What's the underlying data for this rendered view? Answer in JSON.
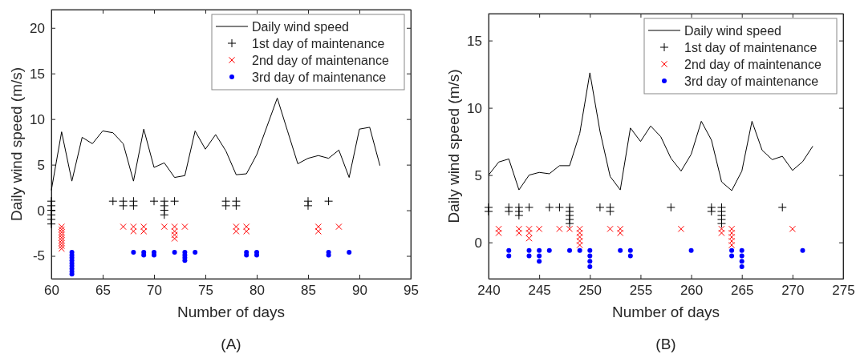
{
  "chart_data": [
    {
      "type": "line",
      "xlabel": "Number of days",
      "ylabel": "Daily wind speed (m/s)",
      "annotations": [
        "(A)"
      ],
      "xlim": [
        60,
        95
      ],
      "xticks": [
        60,
        65,
        70,
        75,
        80,
        85,
        90,
        95
      ],
      "ylim": [
        -7.5,
        22
      ],
      "yticks": [
        -5,
        0,
        5,
        10,
        15,
        20
      ],
      "legend": "top right",
      "grid": false,
      "series": [
        {
          "name": "Daily wind speed",
          "color": "#000000",
          "marker": "none",
          "x": [
            60,
            61,
            62,
            63,
            64,
            65,
            66,
            67,
            68,
            69,
            70,
            71,
            72,
            73,
            74,
            75,
            76,
            77,
            78,
            79,
            80,
            81,
            82,
            83,
            84,
            85,
            86,
            87,
            88,
            89,
            90,
            91,
            92
          ],
          "values": [
            2.2,
            8.6,
            3.2,
            8.0,
            7.3,
            8.7,
            8.5,
            7.3,
            3.2,
            8.9,
            4.7,
            5.2,
            3.6,
            3.8,
            8.7,
            6.7,
            8.3,
            6.5,
            3.9,
            4.0,
            6.1,
            9.2,
            12.3,
            8.7,
            5.1,
            5.7,
            6.0,
            5.7,
            6.6,
            3.6,
            8.9,
            9.1,
            4.9
          ]
        },
        {
          "name": "1st day of maintenance",
          "type": "scatter",
          "color": "#000000",
          "marker": "cross",
          "x": [
            60,
            60,
            60,
            60,
            60,
            60,
            66,
            67,
            67,
            68,
            68,
            70,
            71,
            71,
            71,
            71,
            72,
            77,
            77,
            78,
            78,
            85,
            85,
            87
          ],
          "values": [
            1,
            0.5,
            0,
            -0.5,
            -1,
            -1.5,
            1,
            1,
            0.5,
            1,
            0.5,
            1,
            1,
            0.5,
            0,
            -0.5,
            1,
            1,
            0.5,
            1,
            0.5,
            1,
            0.5,
            1
          ]
        },
        {
          "name": "2nd day of maintenance",
          "type": "scatter",
          "color": "#ff0000",
          "marker": "x",
          "x": [
            61,
            61,
            61,
            61,
            61,
            61,
            61,
            61,
            61,
            67,
            68,
            68,
            69,
            69,
            71,
            72,
            72,
            72,
            72,
            73,
            78,
            78,
            79,
            79,
            86,
            86,
            88
          ],
          "values": [
            -1.8,
            -2.1,
            -2.4,
            -2.7,
            -3.0,
            -3.3,
            -3.6,
            -3.9,
            -4.2,
            -1.8,
            -1.8,
            -2.3,
            -1.8,
            -2.3,
            -1.8,
            -1.8,
            -2.3,
            -2.7,
            -3.1,
            -1.8,
            -1.8,
            -2.3,
            -1.8,
            -2.3,
            -1.8,
            -2.3,
            -1.8
          ]
        },
        {
          "name": "3rd day of maintenance",
          "type": "scatter",
          "color": "#0000ff",
          "marker": "circle",
          "x": [
            62,
            62,
            62,
            62,
            62,
            62,
            62,
            62,
            62,
            68,
            69,
            69,
            70,
            70,
            72,
            73,
            73,
            73,
            73,
            74,
            79,
            79,
            80,
            80,
            87,
            87,
            89
          ],
          "values": [
            -4.6,
            -4.9,
            -5.2,
            -5.5,
            -5.8,
            -6.1,
            -6.4,
            -6.7,
            -7.0,
            -4.6,
            -4.6,
            -4.9,
            -4.6,
            -4.9,
            -4.6,
            -4.6,
            -4.9,
            -5.2,
            -5.5,
            -4.6,
            -4.6,
            -4.9,
            -4.6,
            -4.9,
            -4.6,
            -4.9,
            -4.6
          ]
        }
      ]
    },
    {
      "type": "line",
      "xlabel": "Number of days",
      "ylabel": "Daily wind speed (m/s)",
      "annotations": [
        "(B)"
      ],
      "xlim": [
        240,
        275
      ],
      "xticks": [
        240,
        245,
        250,
        255,
        260,
        265,
        270,
        275
      ],
      "ylim": [
        -2.7,
        17
      ],
      "yticks": [
        0,
        5,
        10,
        15
      ],
      "legend": "top right",
      "grid": false,
      "series": [
        {
          "name": "Daily wind speed",
          "color": "#000000",
          "marker": "none",
          "x": [
            240,
            241,
            242,
            243,
            244,
            245,
            246,
            247,
            248,
            249,
            250,
            251,
            252,
            253,
            254,
            255,
            256,
            257,
            258,
            259,
            260,
            261,
            262,
            263,
            264,
            265,
            266,
            267,
            268,
            269,
            270,
            271,
            272
          ],
          "values": [
            5.0,
            5.97,
            6.2,
            3.9,
            5.0,
            5.2,
            5.1,
            5.7,
            5.7,
            8.1,
            12.6,
            8.25,
            4.9,
            3.9,
            8.5,
            7.5,
            8.65,
            7.85,
            6.25,
            5.3,
            6.55,
            9.0,
            7.6,
            4.5,
            3.85,
            5.3,
            9.0,
            6.85,
            6.15,
            6.4,
            5.35,
            6.0,
            7.15
          ]
        },
        {
          "name": "1st day of maintenance",
          "type": "scatter",
          "color": "#000000",
          "marker": "cross",
          "x": [
            240,
            240,
            242,
            242,
            243,
            243,
            243,
            244,
            246,
            247,
            248,
            248,
            248,
            248,
            248,
            251,
            252,
            252,
            258,
            262,
            262,
            263,
            263,
            263,
            263,
            263,
            269
          ],
          "values": [
            2.6,
            2.3,
            2.6,
            2.3,
            2.6,
            2.3,
            2.0,
            2.6,
            2.6,
            2.6,
            2.6,
            2.3,
            2.0,
            1.7,
            1.4,
            2.6,
            2.6,
            2.3,
            2.6,
            2.6,
            2.3,
            2.6,
            2.3,
            2.0,
            1.7,
            1.4,
            2.6
          ]
        },
        {
          "name": "2nd day of maintenance",
          "type": "scatter",
          "color": "#ff0000",
          "marker": "x",
          "x": [
            241,
            241,
            243,
            243,
            244,
            244,
            244,
            245,
            247,
            248,
            249,
            249,
            249,
            249,
            249,
            252,
            253,
            253,
            259,
            263,
            263,
            264,
            264,
            264,
            264,
            264,
            270
          ],
          "values": [
            1.0,
            0.7,
            1.0,
            0.7,
            1.0,
            0.7,
            0.3,
            1.0,
            1.0,
            1.0,
            1.0,
            0.7,
            0.4,
            0.1,
            -0.2,
            1.0,
            1.0,
            0.7,
            1.0,
            1.0,
            0.7,
            1.0,
            0.7,
            0.4,
            0.1,
            -0.2,
            1.0
          ]
        },
        {
          "name": "3rd day of maintenance",
          "type": "scatter",
          "color": "#0000ff",
          "marker": "circle",
          "x": [
            242,
            242,
            244,
            244,
            245,
            245,
            245,
            246,
            248,
            249,
            250,
            250,
            250,
            250,
            253,
            254,
            254,
            260,
            264,
            264,
            265,
            265,
            265,
            265,
            271
          ],
          "values": [
            -0.6,
            -1.0,
            -0.6,
            -1.0,
            -0.6,
            -1.0,
            -1.4,
            -0.6,
            -0.6,
            -0.6,
            -0.6,
            -1.0,
            -1.4,
            -1.8,
            -0.6,
            -0.6,
            -1.0,
            -0.6,
            -0.6,
            -1.0,
            -0.6,
            -1.0,
            -1.4,
            -1.8,
            -0.6
          ]
        }
      ]
    }
  ]
}
